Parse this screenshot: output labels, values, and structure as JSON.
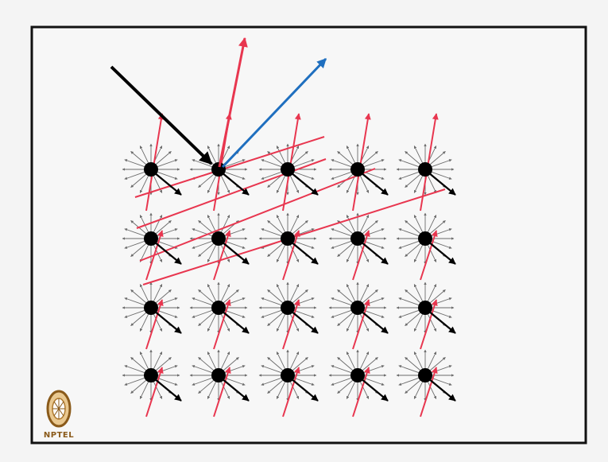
{
  "slide": {
    "background": "#f4f4f4",
    "frame_color": "#111111"
  },
  "diagram": {
    "lattice": {
      "rows": 4,
      "columns": 5
    },
    "colors": {
      "atom": "#000000",
      "scatter_arrows": "#6a6a6a",
      "incident_beam": "#000000",
      "transmitted_arrows": "#000000",
      "diffracted_arrows": "#e8364f",
      "lattice_planes": "#e8364f",
      "reflected_beam": "#1f6fbf"
    },
    "icons": {
      "incident": "arrow-incident",
      "reflected": "arrow-reflected",
      "atom": "atom-dot"
    }
  },
  "logo": {
    "text": "NPTEL",
    "icon": "nptel-wheel-logo",
    "color": "#8a5a1a"
  }
}
